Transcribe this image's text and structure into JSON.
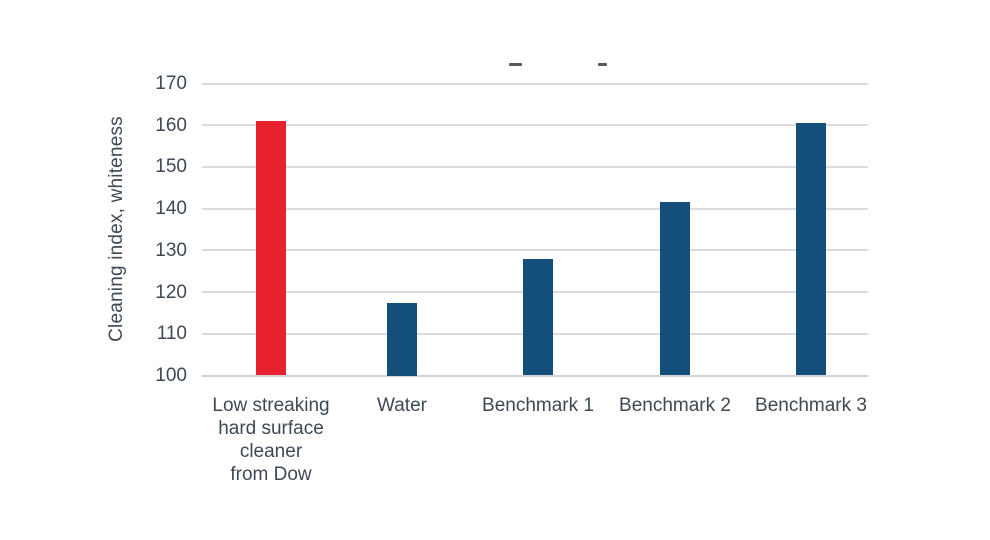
{
  "chart_data": {
    "type": "bar",
    "title": "",
    "ylabel": "Cleaning index, whiteness",
    "xlabel": "",
    "categories": [
      "Low streaking\nhard surface\ncleaner\nfrom Dow",
      "Water",
      "Benchmark 1",
      "Benchmark 2",
      "Benchmark 3"
    ],
    "values": [
      161,
      117.5,
      128,
      141.5,
      160.5
    ],
    "bar_colors": [
      "#e8212e",
      "#134f7a",
      "#134f7a",
      "#134f7a",
      "#134f7a"
    ],
    "highlight_color": "#e8212e",
    "default_bar_color": "#134f7a",
    "yticks": [
      100,
      110,
      120,
      130,
      140,
      150,
      160,
      170
    ],
    "ylim": [
      100,
      170
    ],
    "grid": true,
    "legend": false,
    "text_color": "#3e4956",
    "grid_color": "#dcdce0",
    "axis_color": "#d2d2d7",
    "background": "#ffffff"
  }
}
